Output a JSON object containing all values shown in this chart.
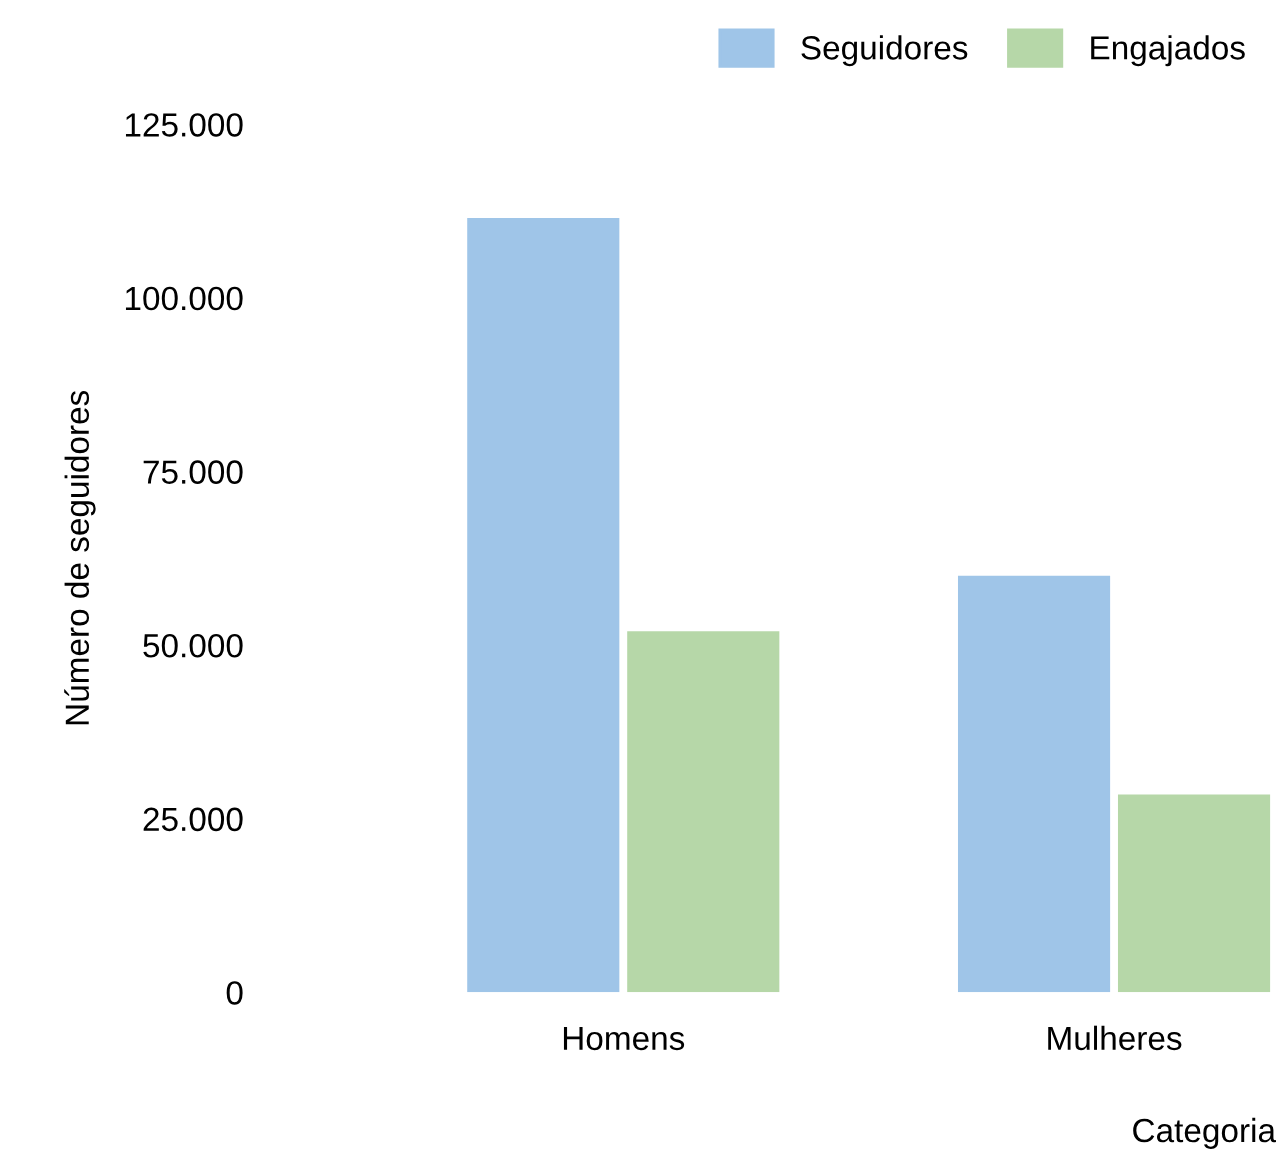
{
  "chart_data": {
    "type": "bar",
    "ylabel": "Número de seguidores",
    "xlabel": "Categoria",
    "categories": [
      "Homens",
      "Mulheres"
    ],
    "series": [
      {
        "name": "Seguidores",
        "color": "#9fc5e8",
        "values": [
          111500,
          60000
        ]
      },
      {
        "name": "Engajados",
        "color": "#b6d7a8",
        "values": [
          52000,
          28500
        ]
      }
    ],
    "ylim": [
      0,
      125000
    ],
    "yticks": [
      {
        "value": 0,
        "label": "0"
      },
      {
        "value": 25000,
        "label": "25.000"
      },
      {
        "value": 50000,
        "label": "50.000"
      },
      {
        "value": 75000,
        "label": "75.000"
      },
      {
        "value": 100000,
        "label": "100.000"
      },
      {
        "value": 125000,
        "label": "125.000"
      }
    ],
    "grid": false,
    "legend": "top right"
  }
}
